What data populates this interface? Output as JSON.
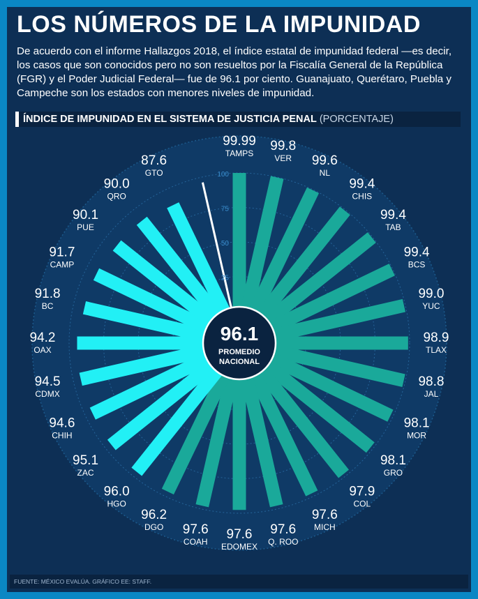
{
  "header": {
    "title": "LOS NÚMEROS DE LA IMPUNIDAD",
    "intro": "De acuerdo con el informe Hallazgos 2018, el índice estatal de impunidad federal —es decir, los casos que son conocidos pero no son resueltos por la Fiscalía General de la República (FGR) y el Poder Judicial Federal— fue de 96.1 por ciento. Guanajuato, Querétaro, Puebla y Campeche son los estados con menores niveles de impunidad."
  },
  "chart_data": {
    "type": "bar",
    "layout": "radial",
    "title": "ÍNDICE DE IMPUNIDAD EN EL SISTEMA DE JUSTICIA PENAL",
    "unit": "(PORCENTAJE)",
    "ylim": [
      0,
      100
    ],
    "radial_ticks": [
      0,
      25,
      50,
      75,
      100
    ],
    "center_value": "96.1",
    "center_label_1": "PROMEDIO",
    "center_label_2": "NACIONAL",
    "average_value": 96.1,
    "categories": [
      "TAMPS",
      "VER",
      "NL",
      "CHIS",
      "TAB",
      "BCS",
      "YUC",
      "TLAX",
      "JAL",
      "MOR",
      "GRO",
      "COL",
      "MICH",
      "Q. ROO",
      "EDOMEX",
      "COAH",
      "DGO",
      "HGO",
      "ZAC",
      "CHIH",
      "CDMX",
      "OAX",
      "BC",
      "CAMP",
      "PUE",
      "QRO",
      "GTO"
    ],
    "values": [
      99.99,
      99.8,
      99.6,
      99.4,
      99.4,
      99.4,
      99.0,
      98.9,
      98.8,
      98.1,
      98.1,
      97.9,
      97.6,
      97.6,
      97.6,
      97.6,
      96.2,
      96.0,
      95.1,
      94.6,
      94.5,
      94.2,
      91.8,
      91.7,
      90.1,
      90.0,
      87.6
    ],
    "value_labels": [
      "99.99",
      "99.8",
      "99.6",
      "99.4",
      "99.4",
      "99.4",
      "99.0",
      "98.9",
      "98.8",
      "98.1",
      "98.1",
      "97.9",
      "97.6",
      "97.6",
      "97.6",
      "97.6",
      "96.2",
      "96.0",
      "95.1",
      "94.6",
      "94.5",
      "94.2",
      "91.8",
      "91.7",
      "90.1",
      "90.0",
      "87.6"
    ],
    "colors": {
      "above_average": "#1aa99a",
      "below_average": "#22f0f5",
      "average_line": "#ffffff"
    },
    "grid": true
  },
  "footer": {
    "source": "FUENTE: MÉXICO EVALÚA. GRÁFICO EE: STAFF."
  }
}
